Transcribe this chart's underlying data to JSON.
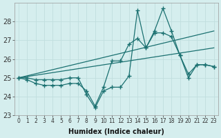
{
  "xlabel": "Humidex (Indice chaleur)",
  "background_color": "#d5eeee",
  "line_color": "#1a7070",
  "grid_color": "#c0dede",
  "xlim": [
    -0.5,
    23.5
  ],
  "ylim": [
    23,
    29
  ],
  "yticks": [
    23,
    24,
    25,
    26,
    27,
    28
  ],
  "xticks": [
    0,
    1,
    2,
    3,
    4,
    5,
    6,
    7,
    8,
    9,
    10,
    11,
    12,
    13,
    14,
    15,
    16,
    17,
    18,
    19,
    20,
    21,
    22,
    23
  ],
  "series_with_markers": [
    [
      25.0,
      24.9,
      24.7,
      24.6,
      24.6,
      24.6,
      24.7,
      24.7,
      24.3,
      23.5,
      24.5,
      25.9,
      25.9,
      26.8,
      27.1,
      26.6,
      27.4,
      27.4,
      27.2,
      26.2,
      25.2,
      25.7,
      25.7,
      25.6
    ],
    [
      25.0,
      25.0,
      24.9,
      24.9,
      24.9,
      24.9,
      25.0,
      25.0,
      24.1,
      23.4,
      24.3,
      24.5,
      24.5,
      25.1,
      28.6,
      26.6,
      27.5,
      28.7,
      27.5,
      26.2,
      25.0,
      25.7,
      25.7,
      25.6
    ]
  ],
  "trend_lines": [
    {
      "x0": 0,
      "y0": 25.0,
      "x1": 23,
      "y1": 26.6
    },
    {
      "x0": 0,
      "y0": 25.0,
      "x1": 23,
      "y1": 27.5
    }
  ]
}
